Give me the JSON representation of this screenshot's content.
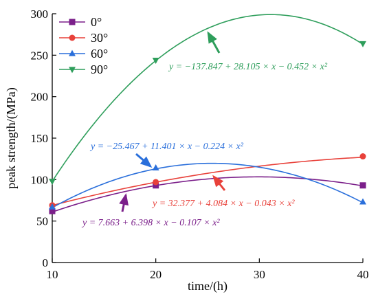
{
  "chart_data": {
    "type": "scatter",
    "xlabel": "time/(h)",
    "ylabel": "peak strength/(MPa)",
    "xlim": [
      10,
      40
    ],
    "ylim": [
      0,
      300
    ],
    "xticks": [
      "10",
      "20",
      "30",
      "40"
    ],
    "yticks": [
      "0",
      "50",
      "100",
      "150",
      "200",
      "250",
      "300"
    ],
    "grid": false,
    "legend": "top-left",
    "series": [
      {
        "name": "0°",
        "marker": "square",
        "color": "#7b1f8a",
        "x": [
          10,
          20,
          40
        ],
        "y": [
          62,
          93,
          93
        ],
        "fit": [
          7.663,
          6.398,
          -0.107
        ],
        "equation": "y = 7.663 + 6.398 × x − 0.107 × x²"
      },
      {
        "name": "30°",
        "marker": "circle",
        "color": "#e8413a",
        "x": [
          10,
          20,
          40
        ],
        "y": [
          69,
          97,
          128
        ],
        "fit": [
          32.377,
          4.084,
          -0.043
        ],
        "equation": "y = 32.377 + 4.084 × x − 0.043 × x²"
      },
      {
        "name": "60°",
        "marker": "triangle-up",
        "color": "#2a6fdb",
        "x": [
          10,
          20,
          40
        ],
        "y": [
          67,
          114,
          73
        ],
        "fit": [
          -25.467,
          11.401,
          -0.224
        ],
        "equation": "y = −25.467 + 11.401 × x − 0.224 × x²"
      },
      {
        "name": "90°",
        "marker": "triangle-down",
        "color": "#2e9e5b",
        "x": [
          10,
          20,
          40
        ],
        "y": [
          98,
          244,
          264
        ],
        "fit": [
          -137.847,
          28.105,
          -0.452
        ],
        "equation": "y = −137.847 + 28.105 × x − 0.452 × x²"
      }
    ]
  }
}
